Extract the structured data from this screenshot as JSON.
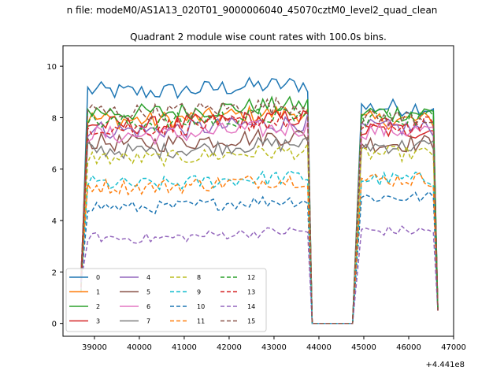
{
  "window": {
    "title_top": "n file: modeM0/AS1A13_020T01_9000006040_45070cztM0_level2_quad_clean",
    "title_sub": "Quadrant 2 module wise count rates with 100.0s bins."
  },
  "chart_data": {
    "type": "line",
    "title": "Quadrant 2 module wise count rates with 100.0s bins.",
    "xlabel": "",
    "ylabel": "",
    "x_offset_label": "+4.441e8",
    "xlim": [
      38300,
      47000
    ],
    "ylim": [
      -0.5,
      10.8
    ],
    "x_ticks": [
      39000,
      40000,
      41000,
      42000,
      43000,
      44000,
      45000,
      46000,
      47000
    ],
    "x_tick_labels": [
      "39000",
      "40000",
      "41000",
      "42000",
      "43000",
      "44000",
      "45000",
      "46000",
      "47000"
    ],
    "y_ticks": [
      0,
      2,
      4,
      6,
      8,
      10
    ],
    "y_tick_labels": [
      "0",
      "2",
      "4",
      "6",
      "8",
      "10"
    ],
    "grid": false,
    "legend_placement": "lower-left",
    "segments": {
      "first_on": [
        38700,
        38850,
        43750
      ],
      "gap": [
        43850,
        44750
      ],
      "second_on": [
        44800,
        44950,
        46650
      ]
    },
    "series": [
      {
        "name": "0",
        "color": "#1f77b4",
        "dash": "solid",
        "level1": 9.3,
        "level2": 8.4,
        "noise": 0.35
      },
      {
        "name": "1",
        "color": "#ff7f0e",
        "dash": "solid",
        "level1": 8.2,
        "level2": 7.9,
        "noise": 0.35
      },
      {
        "name": "2",
        "color": "#2ca02c",
        "dash": "solid",
        "level1": 8.5,
        "level2": 8.2,
        "noise": 0.35
      },
      {
        "name": "3",
        "color": "#d62728",
        "dash": "solid",
        "level1": 8.0,
        "level2": 7.5,
        "noise": 0.35
      },
      {
        "name": "4",
        "color": "#9467bd",
        "dash": "solid",
        "level1": 7.8,
        "level2": 7.6,
        "noise": 0.35
      },
      {
        "name": "5",
        "color": "#8c564b",
        "dash": "solid",
        "level1": 7.3,
        "level2": 7.0,
        "noise": 0.35
      },
      {
        "name": "6",
        "color": "#e377c2",
        "dash": "solid",
        "level1": 7.6,
        "level2": 7.5,
        "noise": 0.35
      },
      {
        "name": "7",
        "color": "#7f7f7f",
        "dash": "solid",
        "level1": 7.0,
        "level2": 6.9,
        "noise": 0.3
      },
      {
        "name": "8",
        "color": "#bcbd22",
        "dash": "dashed",
        "level1": 6.7,
        "level2": 6.6,
        "noise": 0.3
      },
      {
        "name": "9",
        "color": "#17becf",
        "dash": "dashed",
        "level1": 5.7,
        "level2": 5.6,
        "noise": 0.3
      },
      {
        "name": "10",
        "color": "#1f77b4",
        "dash": "dashed",
        "level1": 4.8,
        "level2": 4.9,
        "noise": 0.25
      },
      {
        "name": "11",
        "color": "#ff7f0e",
        "dash": "dashed",
        "level1": 5.6,
        "level2": 5.6,
        "noise": 0.3
      },
      {
        "name": "12",
        "color": "#2ca02c",
        "dash": "dashed",
        "level1": 8.1,
        "level2": 8.0,
        "noise": 0.35
      },
      {
        "name": "13",
        "color": "#d62728",
        "dash": "dashed",
        "level1": 7.9,
        "level2": 7.7,
        "noise": 0.35
      },
      {
        "name": "14",
        "color": "#9467bd",
        "dash": "dashed",
        "level1": 3.6,
        "level2": 3.6,
        "noise": 0.2
      },
      {
        "name": "15",
        "color": "#8c564b",
        "dash": "dashed",
        "level1": 8.5,
        "level2": 8.0,
        "noise": 0.35
      }
    ]
  }
}
